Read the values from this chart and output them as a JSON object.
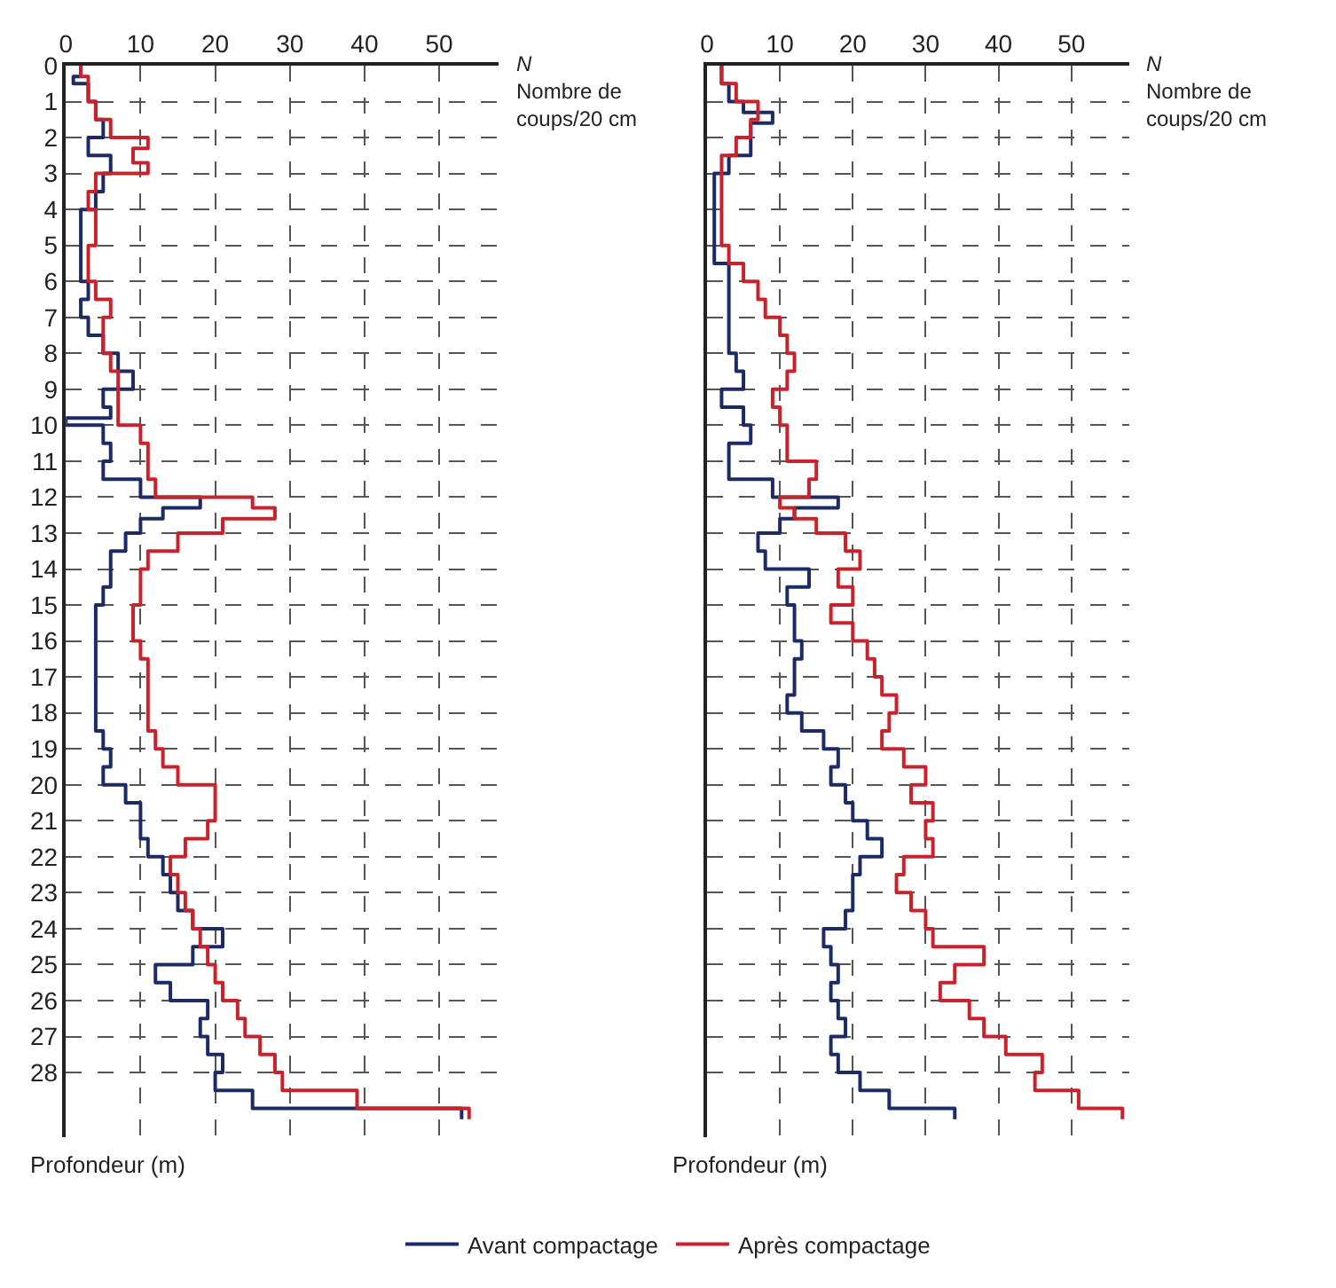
{
  "chart_data": [
    {
      "type": "step",
      "orientation": "horizontal",
      "xlabel": "N\nNombre de\ncoups/20 cm",
      "ylabel": "Profondeur (m)",
      "xlim": [
        0,
        58
      ],
      "xticks": [
        0,
        10,
        20,
        30,
        40,
        50
      ],
      "ylim": [
        29.8,
        0
      ],
      "yticks": [
        0,
        1,
        2,
        3,
        4,
        5,
        6,
        7,
        8,
        9,
        10,
        11,
        12,
        13,
        14,
        15,
        16,
        17,
        18,
        19,
        20,
        21,
        22,
        23,
        24,
        25,
        26,
        27,
        28
      ],
      "grid": true,
      "legend": "bottom",
      "series": [
        {
          "name": "Avant compactage",
          "color": "#1c2a66",
          "x": [
            0,
            0.3,
            0.5,
            1,
            1.5,
            2,
            2.5,
            3,
            3.5,
            4,
            6,
            6.5,
            7,
            7.5,
            8,
            8.5,
            9,
            9.5,
            9.8,
            10,
            10.5,
            11,
            11.5,
            12,
            12.3,
            12.6,
            13,
            13.5,
            14,
            14.5,
            15,
            18.5,
            19,
            19.5,
            20,
            20.5,
            21.5,
            22,
            22.5,
            23,
            23.5,
            24,
            24.5,
            25,
            25.5,
            26,
            26.5,
            27,
            27.5,
            28,
            28.5,
            29,
            29.3
          ],
          "values": [
            2,
            1,
            3,
            4,
            5,
            3,
            6,
            5,
            4,
            2,
            3,
            2,
            3,
            5,
            7,
            9,
            5,
            6,
            0,
            5,
            6,
            5,
            10,
            18,
            13,
            10,
            8,
            6,
            6,
            5,
            4,
            5,
            6,
            5,
            8,
            10,
            11,
            13,
            14,
            15,
            17,
            21,
            17,
            12,
            14,
            19,
            18,
            19,
            21,
            20,
            25,
            53,
            53
          ]
        },
        {
          "name": "Après compactage",
          "color": "#c8232c",
          "x": [
            0,
            0.3,
            1,
            1.5,
            2,
            2.3,
            2.7,
            3,
            3.5,
            4,
            5,
            6,
            6.5,
            7,
            8,
            8.5,
            10,
            10.5,
            11.5,
            12,
            12.3,
            12.6,
            13,
            13.5,
            14,
            15,
            16,
            16.5,
            18.5,
            19,
            19.5,
            20,
            21,
            21.5,
            22,
            22.5,
            23,
            23.5,
            24,
            24.5,
            25,
            25.5,
            26,
            26.5,
            27,
            27.5,
            28,
            28.5,
            29,
            29.3
          ],
          "values": [
            2,
            3,
            4,
            6,
            11,
            9,
            11,
            4,
            3,
            4,
            3,
            4,
            6,
            5,
            6,
            7,
            10,
            11,
            12,
            25,
            28,
            21,
            15,
            11,
            10,
            9,
            10,
            11,
            12,
            13,
            15,
            20,
            19,
            16,
            14,
            15,
            16,
            17,
            18,
            19,
            20,
            21,
            23,
            24,
            26,
            28,
            29,
            39,
            54,
            54
          ]
        }
      ]
    },
    {
      "type": "step",
      "orientation": "horizontal",
      "xlabel": "N\nNombre de\ncoups/20 cm",
      "ylabel": "Profondeur (m)",
      "xlim": [
        0,
        58
      ],
      "xticks": [
        0,
        10,
        20,
        30,
        40,
        50
      ],
      "ylim": [
        29.8,
        0
      ],
      "yticks": [
        0,
        1,
        2,
        3,
        4,
        5,
        6,
        7,
        8,
        9,
        10,
        11,
        12,
        13,
        14,
        15,
        16,
        17,
        18,
        19,
        20,
        21,
        22,
        23,
        24,
        25,
        26,
        27,
        28
      ],
      "tick_labels": "x",
      "grid": true,
      "series": [
        {
          "color": "#1c2a66",
          "x": [
            0,
            0.5,
            1,
            1.3,
            1.6,
            2.5,
            3,
            5.5,
            8,
            8.5,
            9,
            9.5,
            10,
            10.5,
            11.5,
            12,
            12.3,
            12.6,
            13,
            13.5,
            14,
            14.5,
            15,
            16,
            16.5,
            17.5,
            18,
            18.5,
            19,
            19.5,
            20,
            20.5,
            21,
            21.5,
            22,
            22.5,
            23.5,
            24,
            24.5,
            25,
            25.5,
            26,
            26.5,
            27,
            27.5,
            28,
            28.5,
            29,
            29.3
          ],
          "values": [
            2,
            3,
            5,
            9,
            6,
            3,
            1,
            3,
            4,
            5,
            2,
            5,
            6,
            3,
            9,
            18,
            12,
            10,
            7,
            8,
            14,
            11,
            12,
            13,
            12,
            11,
            13,
            16,
            18,
            17,
            19,
            20,
            22,
            24,
            21,
            20,
            19,
            16,
            17,
            18,
            17,
            18,
            19,
            17,
            18,
            21,
            25,
            34,
            34
          ]
        },
        {
          "color": "#c8232c",
          "x": [
            0,
            0.5,
            1,
            1.5,
            2,
            2.5,
            5,
            5.5,
            6,
            6.5,
            7,
            7.5,
            8,
            8.5,
            9,
            9.5,
            10,
            11,
            11.5,
            12,
            12.3,
            12.6,
            13,
            13.5,
            14,
            14.5,
            15,
            15.5,
            16,
            16.5,
            17,
            17.5,
            18,
            18.5,
            19,
            19.5,
            20,
            20.5,
            21,
            21.5,
            22,
            22.5,
            23,
            23.5,
            24,
            24.5,
            25,
            25.5,
            26,
            26.5,
            27,
            27.5,
            28,
            28.5,
            29,
            29.3
          ],
          "values": [
            2,
            4,
            7,
            6,
            4,
            2,
            3,
            5,
            7,
            8,
            10,
            11,
            12,
            11,
            9,
            10,
            11,
            15,
            14,
            10,
            12,
            15,
            19,
            21,
            18,
            20,
            17,
            20,
            22,
            23,
            24,
            26,
            25,
            24,
            27,
            30,
            28,
            31,
            30,
            31,
            27,
            26,
            28,
            30,
            31,
            38,
            34,
            32,
            36,
            38,
            41,
            46,
            45,
            51,
            57,
            57
          ]
        }
      ]
    }
  ]
}
